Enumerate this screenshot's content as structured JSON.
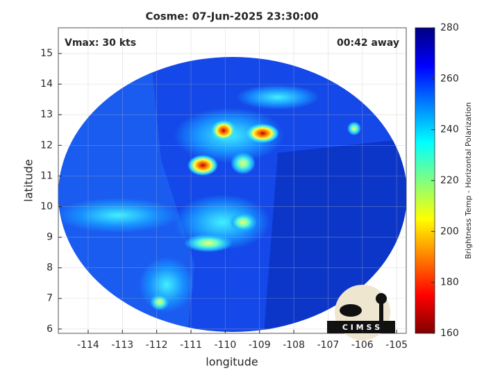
{
  "chart_data": {
    "type": "image",
    "title": "Cosme: 07-Jun-2025 23:30:00",
    "annotations": [
      "Vmax: 30 kts",
      "00:42 away"
    ],
    "x_label": "longitude",
    "y_label": "latitude",
    "xlim": [
      -114.87,
      -104.72
    ],
    "xticks": [
      -114,
      -113,
      -112,
      -111,
      -110,
      -109,
      -108,
      -107,
      -106,
      -105
    ],
    "ylim": [
      5.86,
      15.84
    ],
    "yticks": [
      6,
      7,
      8,
      9,
      10,
      11,
      12,
      13,
      14,
      15
    ],
    "grid": true,
    "colorbar": {
      "label": "Brightness Temp - Horizontal Polarization",
      "colormap": "jet",
      "clim": [
        160,
        280
      ],
      "ticks": [
        160,
        180,
        200,
        220,
        240,
        260,
        280
      ]
    },
    "logo": "C I M S S"
  }
}
